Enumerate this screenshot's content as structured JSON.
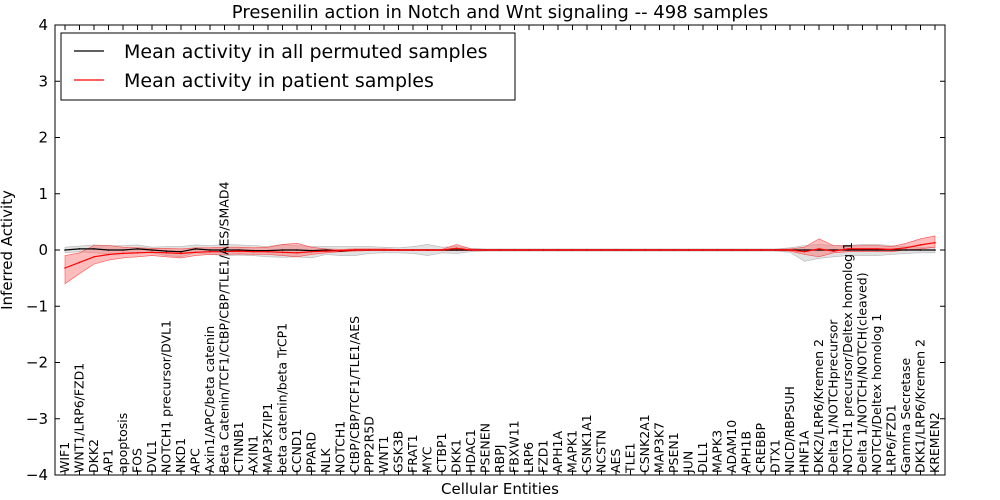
{
  "chart_data": {
    "type": "line",
    "title": "Presenilin action in Notch and Wnt signaling -- 498 samples",
    "xlabel": "Cellular Entities",
    "ylabel": "Inferred Activity",
    "ylim": [
      -4,
      4
    ],
    "yticks": [
      -4,
      -3,
      -2,
      -1,
      0,
      1,
      2,
      3,
      4
    ],
    "yticklabels": [
      "−4",
      "−3",
      "−2",
      "−1",
      "0",
      "1",
      "2",
      "3",
      "4"
    ],
    "grid": false,
    "legend_position": "top-left",
    "categories": [
      "WIF1",
      "WNT1/LRP6/FZD1",
      "DKK2",
      "AP1",
      "apoptosis",
      "FOS",
      "DVL1",
      "NOTCH1 precursor/DVL1",
      "NKD1",
      "APC",
      "Axin1/APC/beta catenin",
      "Beta Catenin/TCF1/CtBP/CBP/TLE1/AES/SMAD4",
      "CTNNB1",
      "AXIN1",
      "MAP3K7IP1",
      "beta catenin/beta TrCP1",
      "CCND1",
      "PPARD",
      "NLK",
      "NOTCH1",
      "CtBP/CBP/TCF1/TLE1/AES",
      "PPP2R5D",
      "WNT1",
      "GSK3B",
      "FRAT1",
      "MYC",
      "CTBP1",
      "DKK1",
      "HDAC1",
      "PSENEN",
      "RBPJ",
      "FBXW11",
      "LRP6",
      "FZD1",
      "APH1A",
      "MAPK1",
      "CSNK1A1",
      "NCSTN",
      "AES",
      "TLE1",
      "CSNK2A1",
      "MAP3K7",
      "PSEN1",
      "JUN",
      "DLL1",
      "MAPK3",
      "ADAM10",
      "APH1B",
      "CREBBP",
      "DTX1",
      "NICD/RBPSUH",
      "HNF1A",
      "DKK2/LRP6/Kremen 2",
      "Delta 1/NOTCHprecursor",
      "NOTCH1 precursor/Deltex homolog 1",
      "Delta 1/NOTCH/NOTCH(cleaved)",
      "NOTCH/Deltex homolog 1",
      "LRP6/FZD1",
      "Gamma Secretase",
      "DKK1/LRP6/Kremen 2",
      "KREMEN2"
    ],
    "series": [
      {
        "name": "Mean activity in all permuted samples",
        "color": "#000000",
        "values": [
          0.0,
          0.02,
          0.02,
          0.0,
          0.0,
          0.02,
          0.0,
          -0.02,
          -0.03,
          0.02,
          0.0,
          0.0,
          0.0,
          -0.01,
          -0.01,
          0.0,
          0.0,
          -0.01,
          0.0,
          -0.02,
          0.0,
          0.0,
          0.0,
          0.0,
          0.0,
          0.0,
          0.0,
          0.0,
          0.0,
          0.0,
          0.0,
          0.0,
          0.0,
          0.0,
          0.0,
          0.0,
          0.0,
          0.0,
          0.0,
          0.0,
          0.0,
          0.0,
          0.0,
          0.0,
          0.0,
          0.0,
          0.0,
          0.0,
          0.0,
          0.0,
          0.0,
          0.0,
          0.0,
          0.0,
          0.0,
          0.0,
          0.0,
          0.0,
          0.0,
          0.0,
          0.0
        ],
        "band_low": [
          -0.05,
          -0.03,
          -0.05,
          -0.07,
          -0.06,
          -0.05,
          -0.05,
          -0.1,
          -0.12,
          -0.05,
          -0.08,
          -0.1,
          -0.09,
          -0.1,
          -0.12,
          -0.13,
          -0.12,
          -0.14,
          -0.08,
          -0.1,
          -0.1,
          -0.06,
          -0.05,
          -0.05,
          -0.06,
          -0.1,
          -0.05,
          -0.06,
          -0.03,
          -0.02,
          -0.02,
          -0.02,
          -0.02,
          -0.02,
          -0.02,
          -0.02,
          -0.02,
          -0.02,
          -0.02,
          -0.02,
          -0.02,
          -0.02,
          -0.02,
          -0.02,
          -0.02,
          -0.02,
          -0.02,
          -0.02,
          -0.02,
          -0.02,
          -0.04,
          -0.2,
          -0.15,
          -0.12,
          -0.1,
          -0.1,
          -0.1,
          -0.08,
          -0.06,
          -0.05,
          -0.05
        ],
        "band_high": [
          0.05,
          0.07,
          0.09,
          0.08,
          0.08,
          0.09,
          0.05,
          0.06,
          0.06,
          0.09,
          0.08,
          0.1,
          0.09,
          0.08,
          0.06,
          0.1,
          0.08,
          0.06,
          0.06,
          0.06,
          0.06,
          0.06,
          0.05,
          0.04,
          0.06,
          0.1,
          0.05,
          0.06,
          0.03,
          0.02,
          0.02,
          0.02,
          0.02,
          0.02,
          0.02,
          0.02,
          0.02,
          0.02,
          0.02,
          0.02,
          0.02,
          0.02,
          0.02,
          0.02,
          0.02,
          0.02,
          0.02,
          0.02,
          0.02,
          0.02,
          0.04,
          0.08,
          0.1,
          0.08,
          0.08,
          0.1,
          0.1,
          0.08,
          0.06,
          0.05,
          0.05
        ]
      },
      {
        "name": "Mean activity in patient samples",
        "color": "#ff0000",
        "values": [
          -0.32,
          -0.22,
          -0.12,
          -0.08,
          -0.06,
          -0.05,
          -0.04,
          -0.05,
          -0.06,
          -0.04,
          -0.03,
          -0.03,
          -0.02,
          -0.03,
          -0.03,
          -0.04,
          -0.05,
          -0.03,
          -0.02,
          -0.01,
          0.0,
          0.0,
          0.0,
          0.0,
          0.0,
          0.0,
          0.0,
          0.03,
          0.0,
          0.0,
          0.0,
          0.0,
          0.0,
          0.0,
          0.0,
          0.0,
          0.0,
          0.0,
          0.0,
          0.0,
          0.0,
          0.0,
          0.0,
          0.0,
          0.0,
          0.0,
          0.0,
          0.0,
          0.0,
          0.0,
          0.0,
          -0.03,
          0.02,
          -0.02,
          0.02,
          0.02,
          0.02,
          0.01,
          0.04,
          0.09,
          0.13
        ],
        "band_low": [
          -0.6,
          -0.42,
          -0.25,
          -0.18,
          -0.14,
          -0.12,
          -0.1,
          -0.12,
          -0.14,
          -0.1,
          -0.08,
          -0.08,
          -0.07,
          -0.08,
          -0.08,
          -0.1,
          -0.12,
          -0.08,
          -0.05,
          -0.03,
          -0.02,
          -0.01,
          -0.01,
          -0.01,
          -0.01,
          -0.01,
          -0.01,
          -0.01,
          -0.01,
          -0.01,
          -0.01,
          -0.01,
          -0.01,
          -0.01,
          -0.01,
          -0.01,
          -0.01,
          -0.01,
          -0.01,
          -0.01,
          -0.01,
          -0.01,
          -0.01,
          -0.01,
          -0.01,
          -0.01,
          -0.01,
          -0.01,
          -0.01,
          -0.01,
          -0.02,
          -0.08,
          -0.12,
          -0.05,
          -0.03,
          -0.03,
          -0.03,
          -0.03,
          0.0,
          0.02,
          0.05
        ],
        "band_high": [
          -0.1,
          -0.05,
          0.08,
          0.08,
          0.05,
          0.04,
          0.03,
          0.03,
          0.02,
          0.04,
          0.04,
          0.05,
          0.05,
          0.04,
          0.05,
          0.1,
          0.12,
          0.05,
          0.02,
          0.01,
          0.02,
          0.02,
          0.02,
          0.01,
          0.01,
          0.01,
          0.01,
          0.1,
          0.02,
          0.01,
          0.01,
          0.01,
          0.01,
          0.01,
          0.01,
          0.01,
          0.01,
          0.01,
          0.01,
          0.01,
          0.01,
          0.01,
          0.01,
          0.01,
          0.01,
          0.01,
          0.01,
          0.01,
          0.01,
          0.01,
          0.02,
          0.05,
          0.2,
          0.08,
          0.07,
          0.08,
          0.08,
          0.06,
          0.12,
          0.2,
          0.25
        ]
      }
    ]
  }
}
